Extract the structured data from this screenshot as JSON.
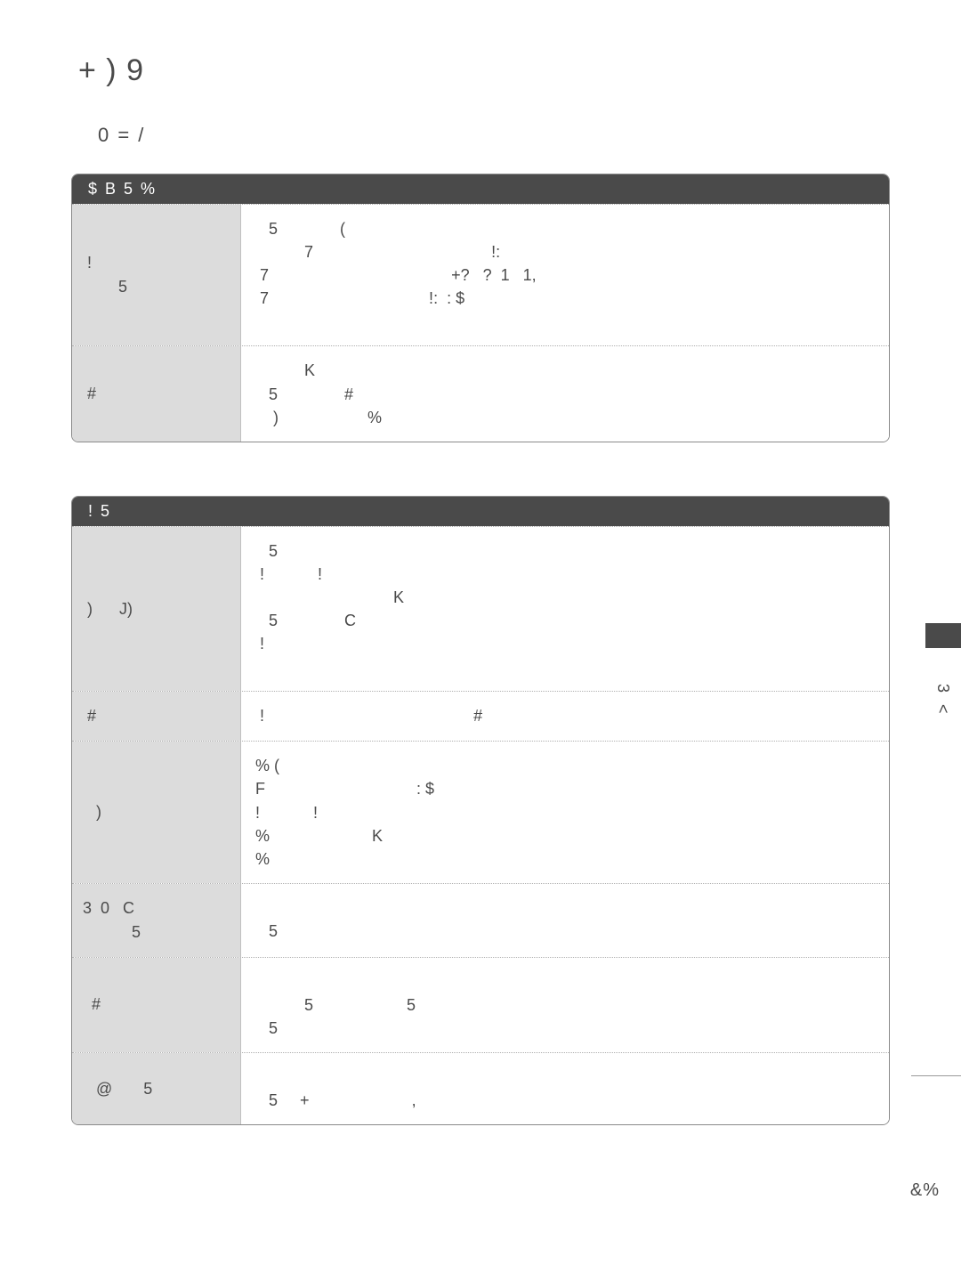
{
  "page": {
    "title": "+   ) 9",
    "subtitle": "0  =   /",
    "side_vert": "3 <",
    "page_num": "&%"
  },
  "table1": {
    "header": "        $        B   5  %",
    "rows": [
      {
        "left": " !\n        5",
        "right": "   5              (\n           7                                        !:\n 7                                         +?   ?  1   1,\n 7                                    !:  : $\n "
      },
      {
        "left": " #",
        "right": "           K\n   5               #\n    )                    %"
      }
    ]
  },
  "table2": {
    "header": " !                        5",
    "rows": [
      {
        "left": " )      J)",
        "right": "   5\n !            !\n                               K\n   5               C\n !\n "
      },
      {
        "left": " #",
        "right": " !                                               #"
      },
      {
        "left": "   )",
        "right": "% (\nF                                  : $\n!            !\n%                       K\n%"
      },
      {
        "left": "3  0   C\n           5",
        "right": "\n   5"
      },
      {
        "left": "  #",
        "right": "\n           5                     5\n   5"
      },
      {
        "left": "   @       5",
        "right": "\n   5     +                       ,"
      }
    ]
  },
  "colors": {
    "header_bg": "#4a4a4a",
    "header_fg": "#ffffff",
    "left_bg": "#dcdcdc",
    "right_bg": "#ffffff",
    "border": "#8a8a8a",
    "dotted": "#b0b0b0",
    "text": "#4a4a4a",
    "page_bg": "#ffffff"
  }
}
